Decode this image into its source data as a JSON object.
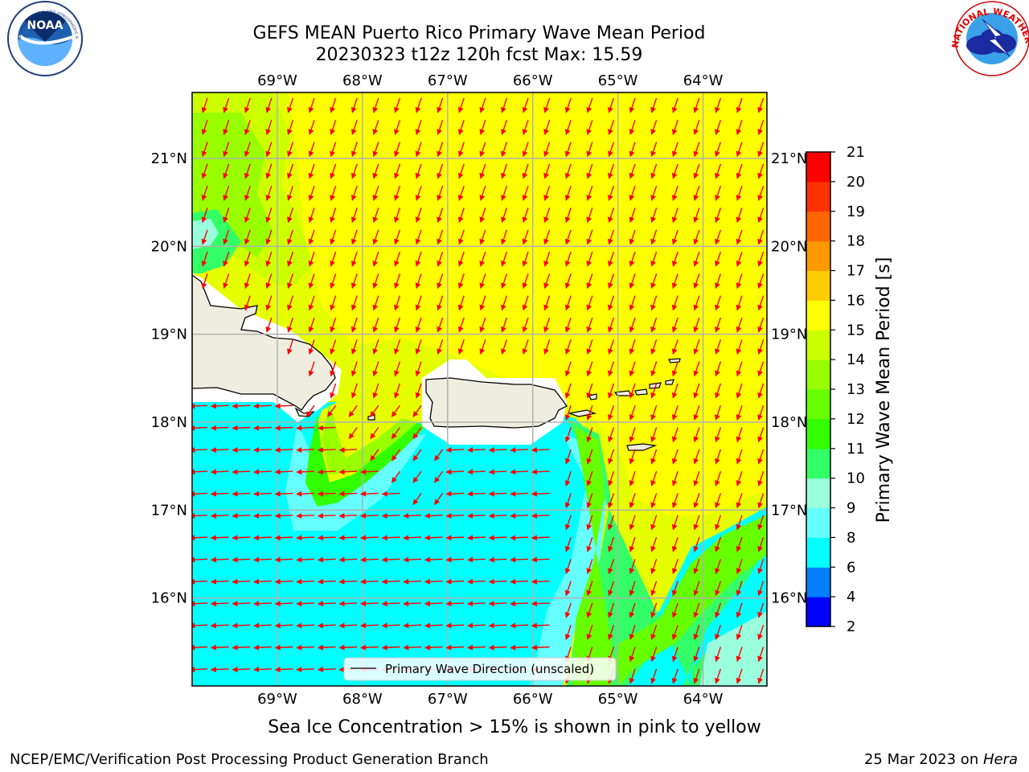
{
  "title": {
    "line1": "GEFS MEAN Puerto Rico Primary Wave Mean Period",
    "line2": "20230323 t12z 120h fcst   Max: 15.59"
  },
  "map": {
    "lon_range": [
      -70.0,
      -63.25
    ],
    "lat_range": [
      15.0,
      21.75
    ],
    "lon_ticks": [
      {
        "value": -69,
        "label": "69°W"
      },
      {
        "value": -68,
        "label": "68°W"
      },
      {
        "value": -67,
        "label": "67°W"
      },
      {
        "value": -66,
        "label": "66°W"
      },
      {
        "value": -65,
        "label": "65°W"
      },
      {
        "value": -64,
        "label": "64°W"
      }
    ],
    "lat_ticks": [
      {
        "value": 21,
        "label": "21°N"
      },
      {
        "value": 20,
        "label": "20°N"
      },
      {
        "value": 19,
        "label": "19°N"
      },
      {
        "value": 18,
        "label": "18°N"
      },
      {
        "value": 17,
        "label": "17°N"
      },
      {
        "value": 16,
        "label": "16°N"
      }
    ],
    "land_color": "#efeddf",
    "arrow_color": "#ff0000",
    "grid_color": "#b0b0b0"
  },
  "legend": {
    "label": "Primary Wave Direction (unscaled)"
  },
  "colorbar": {
    "label": "Primary Wave Mean Period [s]",
    "bounds": [
      2,
      4,
      6,
      8,
      9,
      10,
      11,
      12,
      13,
      14,
      15,
      16,
      17,
      18,
      19,
      20,
      21
    ],
    "colors": [
      "#0000ff",
      "#0080ff",
      "#00ffff",
      "#66ffff",
      "#99ffdd",
      "#33ff66",
      "#33ff00",
      "#66ff00",
      "#99ff00",
      "#ccff00",
      "#ffff00",
      "#ffcc00",
      "#ff9900",
      "#ff6600",
      "#ff3300",
      "#ff0000"
    ],
    "tick_labels": [
      "2",
      "4",
      "6",
      "8",
      "9",
      "10",
      "11",
      "12",
      "13",
      "14",
      "15",
      "16",
      "17",
      "18",
      "19",
      "20",
      "21"
    ]
  },
  "caption": "Sea Ice Concentration > 15% is shown in pink to yellow",
  "footer": {
    "left": "NCEP/EMC/Verification Post Processing Product Generation Branch",
    "right_prefix": "25 Mar 2023 on ",
    "right_host": "Hera"
  },
  "logos": {
    "noaa": "NOAA",
    "noaa_ring": "NATIONAL OCEANIC AND ATMOSPHERIC ADMINISTRATION · U.S. DEPARTMENT OF COMMERCE",
    "nws_ring": "NATIONAL WEATHER SERVICE"
  }
}
